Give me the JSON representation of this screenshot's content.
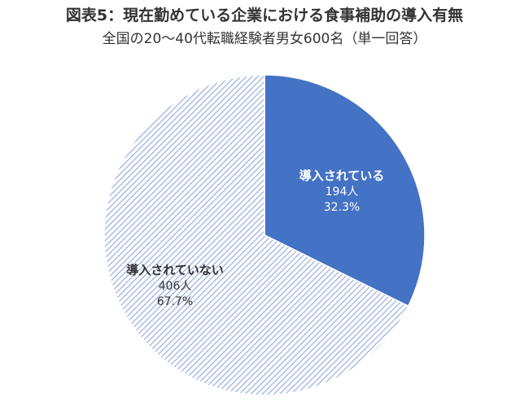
{
  "chart_data": {
    "type": "pie",
    "title": "図表5：現在勤めている企業における食事補助の導入有無",
    "subtitle": "全国の20～40代転職経験者男女600名（単一回答）",
    "slices": [
      {
        "label": "導入されている",
        "count_label": "194人",
        "percent_label": "32.3%",
        "value": 32.3,
        "color": "#4472c4",
        "fill": "solid",
        "text_color": "#ffffff"
      },
      {
        "label": "導入されていない",
        "count_label": "406人",
        "percent_label": "67.7%",
        "value": 67.7,
        "color": "#8ea9db",
        "fill": "diagonal-hatch",
        "text_color": "#333333"
      }
    ]
  }
}
